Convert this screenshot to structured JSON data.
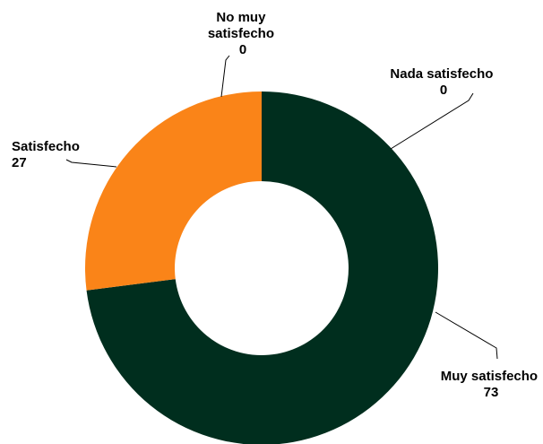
{
  "chart_data": {
    "type": "pie",
    "variant": "donut",
    "title": "",
    "slices": [
      {
        "label": "Muy satisfecho",
        "value": 73,
        "value_label": "73",
        "color": "#002e1e"
      },
      {
        "label": "Satisfecho",
        "value": 27,
        "value_label": "27",
        "color": "#fa8418"
      },
      {
        "label": "No muy satisfecho",
        "label_lines": [
          "No muy",
          "satisfecho"
        ],
        "value": 0,
        "value_label": "0",
        "color": "#9e9e9e"
      },
      {
        "label": "Nada satisfecho",
        "value": 0,
        "value_label": "0",
        "color": "#5b5b5b"
      }
    ],
    "legend": "none"
  }
}
